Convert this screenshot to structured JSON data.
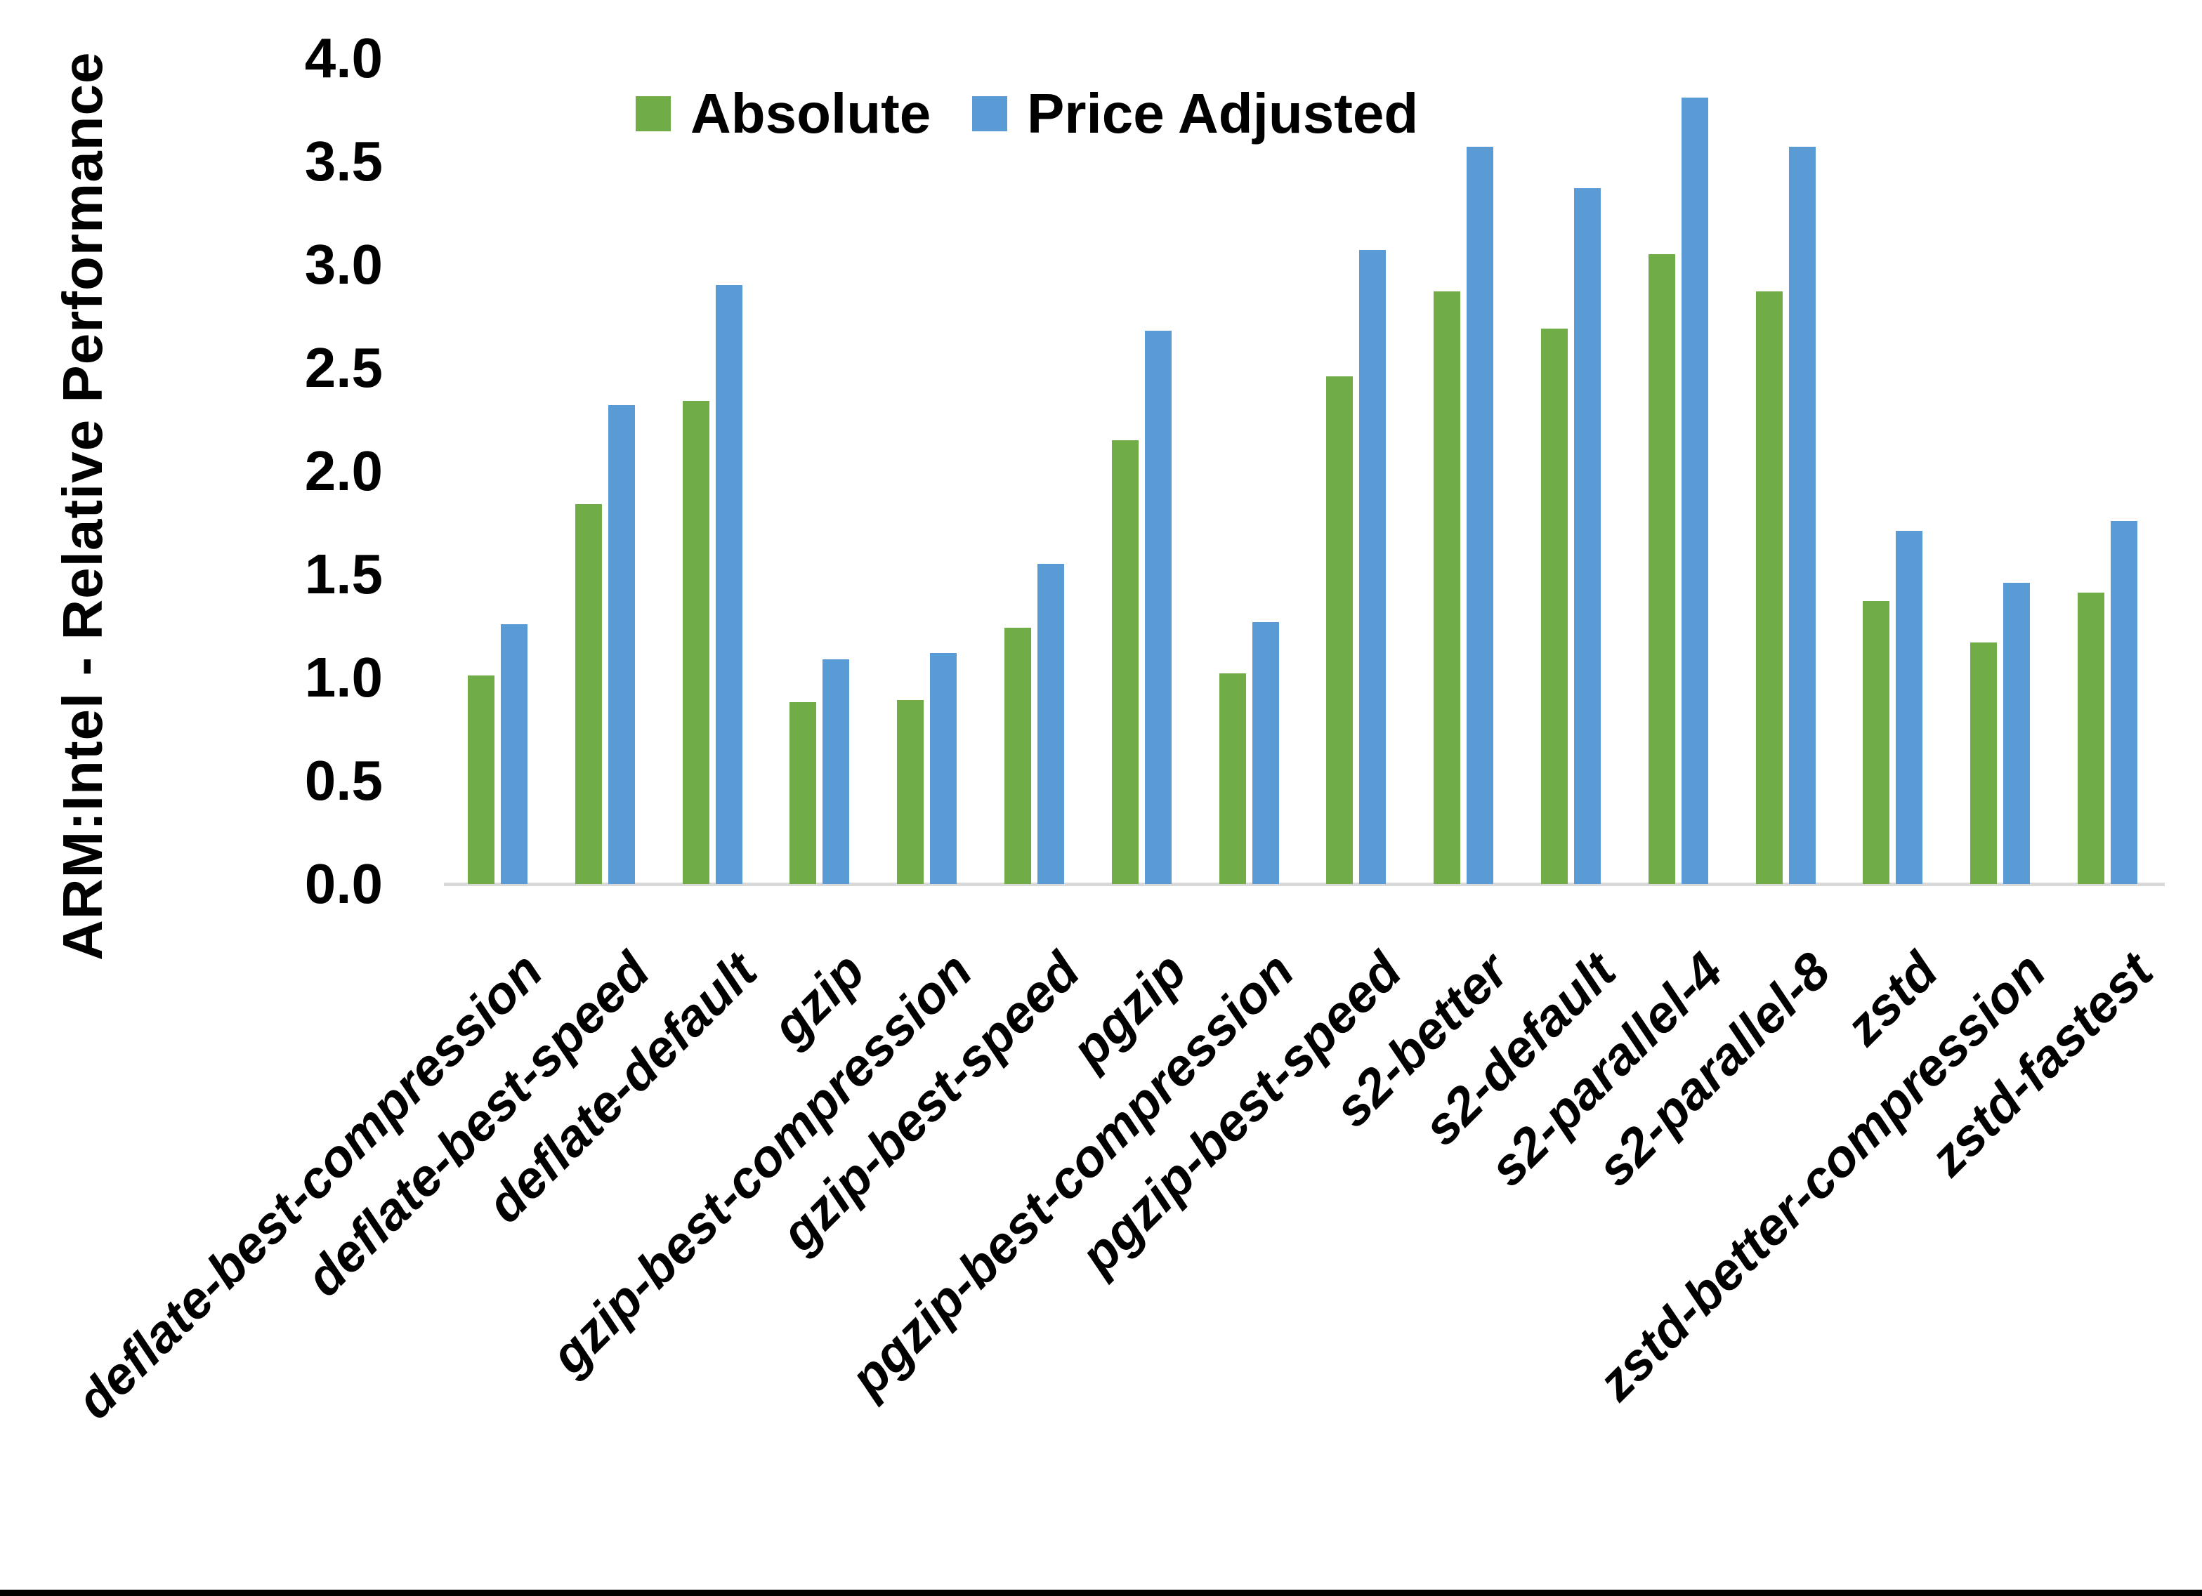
{
  "chart_data": {
    "type": "bar",
    "title": "",
    "xlabel": "",
    "ylabel": "ARM:Intel - Relative Performance",
    "ylim": [
      0.0,
      4.0
    ],
    "ytick_step": 0.5,
    "ytick_labels": [
      "0.0",
      "0.5",
      "1.0",
      "1.5",
      "2.0",
      "2.5",
      "3.0",
      "3.5",
      "4.0"
    ],
    "grid": false,
    "legend_position": "top-center",
    "categories": [
      "deflate-best-compression",
      "deflate-best-speed",
      "deflate-default",
      "gzip",
      "gzip-best-compression",
      "gzip-best-speed",
      "pgzip",
      "pgzip-best-compression",
      "pgzip-best-speed",
      "s2-better",
      "s2-default",
      "s2-parallel-4",
      "s2-parallel-8",
      "zstd",
      "zstd-better-compression",
      "zstd-fastest"
    ],
    "series": [
      {
        "name": "Absolute",
        "color": "#70AD47",
        "values": [
          1.01,
          1.84,
          2.34,
          0.88,
          0.89,
          1.24,
          2.15,
          1.02,
          2.46,
          2.87,
          2.69,
          3.05,
          2.87,
          1.37,
          1.17,
          1.41
        ]
      },
      {
        "name": "Price Adjusted",
        "color": "#5B9BD5",
        "values": [
          1.26,
          2.32,
          2.9,
          1.09,
          1.12,
          1.55,
          2.68,
          1.27,
          3.07,
          3.57,
          3.37,
          3.81,
          3.57,
          1.71,
          1.46,
          1.76
        ]
      }
    ]
  },
  "colors": {
    "background": "#FFFFFF",
    "axis_line": "#D9D9D9",
    "text": "#000000",
    "bottom_border": "#000000"
  }
}
